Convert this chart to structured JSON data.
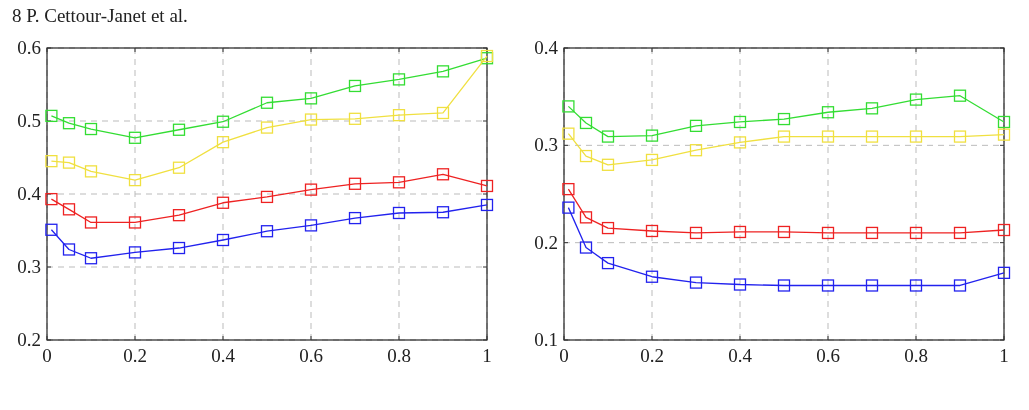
{
  "chart_data": [
    {
      "type": "line",
      "annotations": [
        "8 P. Cettour-Janet et al."
      ],
      "x": [
        0.01,
        0.05,
        0.1,
        0.2,
        0.3,
        0.4,
        0.5,
        0.6,
        0.7,
        0.8,
        0.9,
        1
      ],
      "xlim": [
        0,
        1
      ],
      "xticks": [
        0,
        0.2,
        0.4,
        0.6,
        0.8,
        1
      ],
      "ylim": [
        0.2,
        0.6
      ],
      "yticks": [
        0.2,
        0.3,
        0.4,
        0.5,
        0.6
      ],
      "grid": true,
      "marker": "square",
      "line_style": "solid",
      "series": [
        {
          "color": "#33dd33",
          "values": [
            0.507,
            0.497,
            0.489,
            0.477,
            0.488,
            0.499,
            0.525,
            0.531,
            0.548,
            0.557,
            0.568,
            0.586
          ]
        },
        {
          "color": "#f0e040",
          "values": [
            0.445,
            0.443,
            0.431,
            0.419,
            0.436,
            0.471,
            0.491,
            0.502,
            0.503,
            0.508,
            0.511,
            0.589
          ]
        },
        {
          "color": "#ee2222",
          "values": [
            0.393,
            0.379,
            0.361,
            0.361,
            0.371,
            0.388,
            0.396,
            0.406,
            0.414,
            0.416,
            0.427,
            0.411
          ]
        },
        {
          "color": "#2222ee",
          "values": [
            0.351,
            0.324,
            0.312,
            0.32,
            0.326,
            0.337,
            0.349,
            0.357,
            0.367,
            0.374,
            0.375,
            0.385
          ]
        }
      ]
    },
    {
      "type": "line",
      "x": [
        0.01,
        0.05,
        0.1,
        0.2,
        0.3,
        0.4,
        0.5,
        0.6,
        0.7,
        0.8,
        0.9,
        1
      ],
      "xlim": [
        0,
        1
      ],
      "xticks": [
        0,
        0.2,
        0.4,
        0.6,
        0.8,
        1
      ],
      "ylim": [
        0.1,
        0.4
      ],
      "yticks": [
        0.1,
        0.2,
        0.3,
        0.4
      ],
      "grid": true,
      "marker": "square",
      "line_style": "solid",
      "series": [
        {
          "color": "#33dd33",
          "values": [
            0.34,
            0.323,
            0.309,
            0.31,
            0.32,
            0.324,
            0.327,
            0.334,
            0.338,
            0.347,
            0.351,
            0.324
          ]
        },
        {
          "color": "#f0e040",
          "values": [
            0.312,
            0.289,
            0.28,
            0.285,
            0.295,
            0.303,
            0.309,
            0.309,
            0.309,
            0.309,
            0.309,
            0.311
          ]
        },
        {
          "color": "#ee2222",
          "values": [
            0.255,
            0.226,
            0.215,
            0.212,
            0.21,
            0.211,
            0.211,
            0.21,
            0.21,
            0.21,
            0.21,
            0.213
          ]
        },
        {
          "color": "#2222ee",
          "values": [
            0.236,
            0.195,
            0.179,
            0.165,
            0.159,
            0.157,
            0.156,
            0.156,
            0.156,
            0.156,
            0.156,
            0.169
          ]
        }
      ]
    }
  ]
}
